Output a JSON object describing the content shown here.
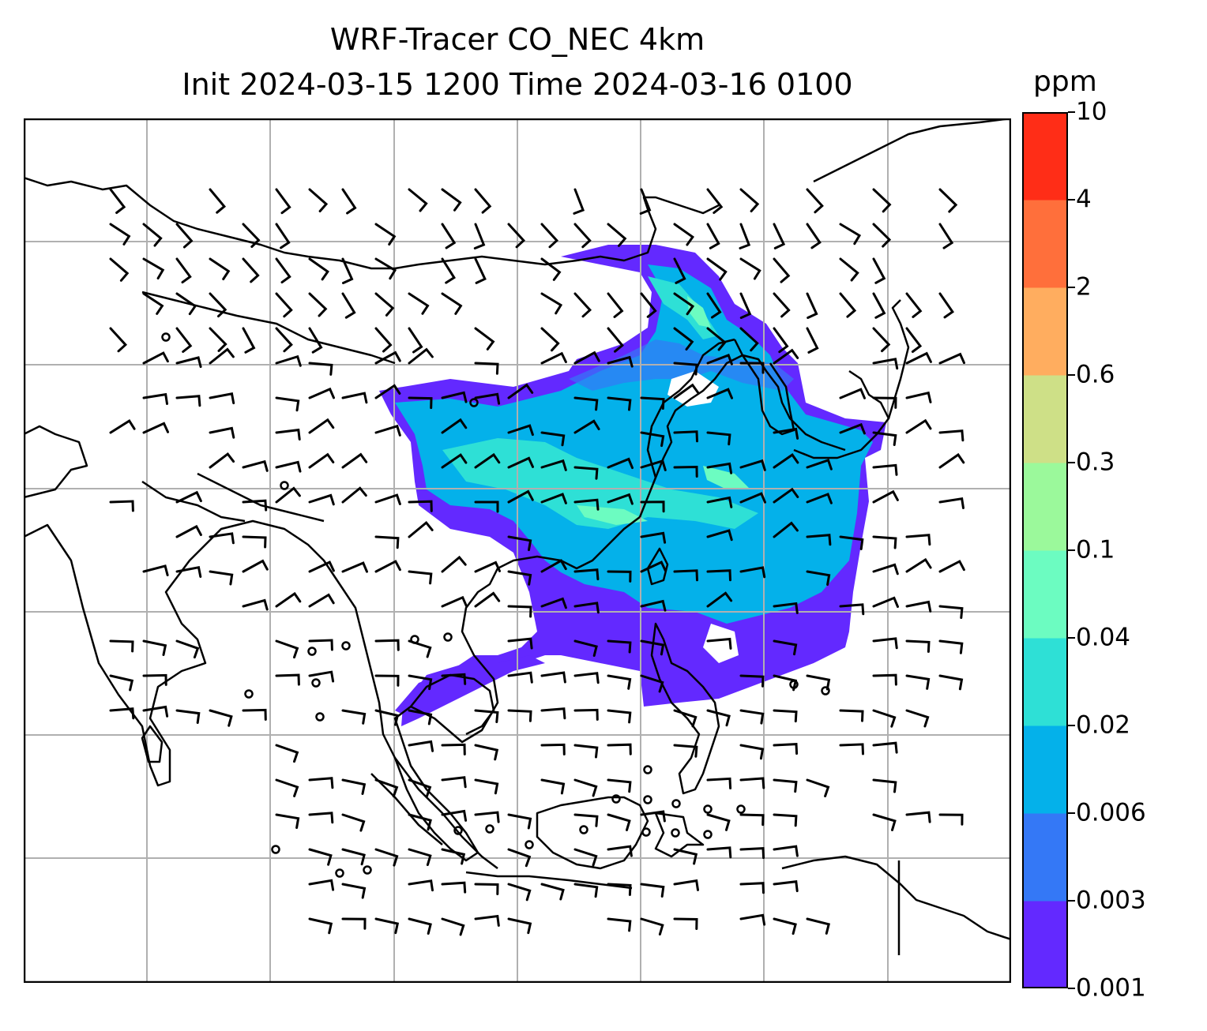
{
  "title": {
    "line1": "WRF-Tracer CO_NEC 4km",
    "line2": "Init 2024-03-15 1200 Time 2024-03-16 0100"
  },
  "colorbar": {
    "unit": "ppm",
    "ticks": [
      "0.001",
      "0.003",
      "0.006",
      "0.02",
      "0.04",
      "0.1",
      "0.3",
      "0.6",
      "2",
      "4",
      "10"
    ],
    "colors": [
      "#6329ff",
      "#3478f6",
      "#04b1ea",
      "#2ee0d6",
      "#6cfcc1",
      "#9bf99b",
      "#cee087",
      "#ffad5f",
      "#ff6f3b",
      "#ff2d17"
    ]
  },
  "map": {
    "gridlines": true,
    "gridline_color": "#b0b0b0",
    "coastline_color": "#000000",
    "wind_barb_color": "#000000",
    "features": [
      "coastlines",
      "country-borders",
      "wind-barbs",
      "CO-tracer-plume"
    ]
  }
}
